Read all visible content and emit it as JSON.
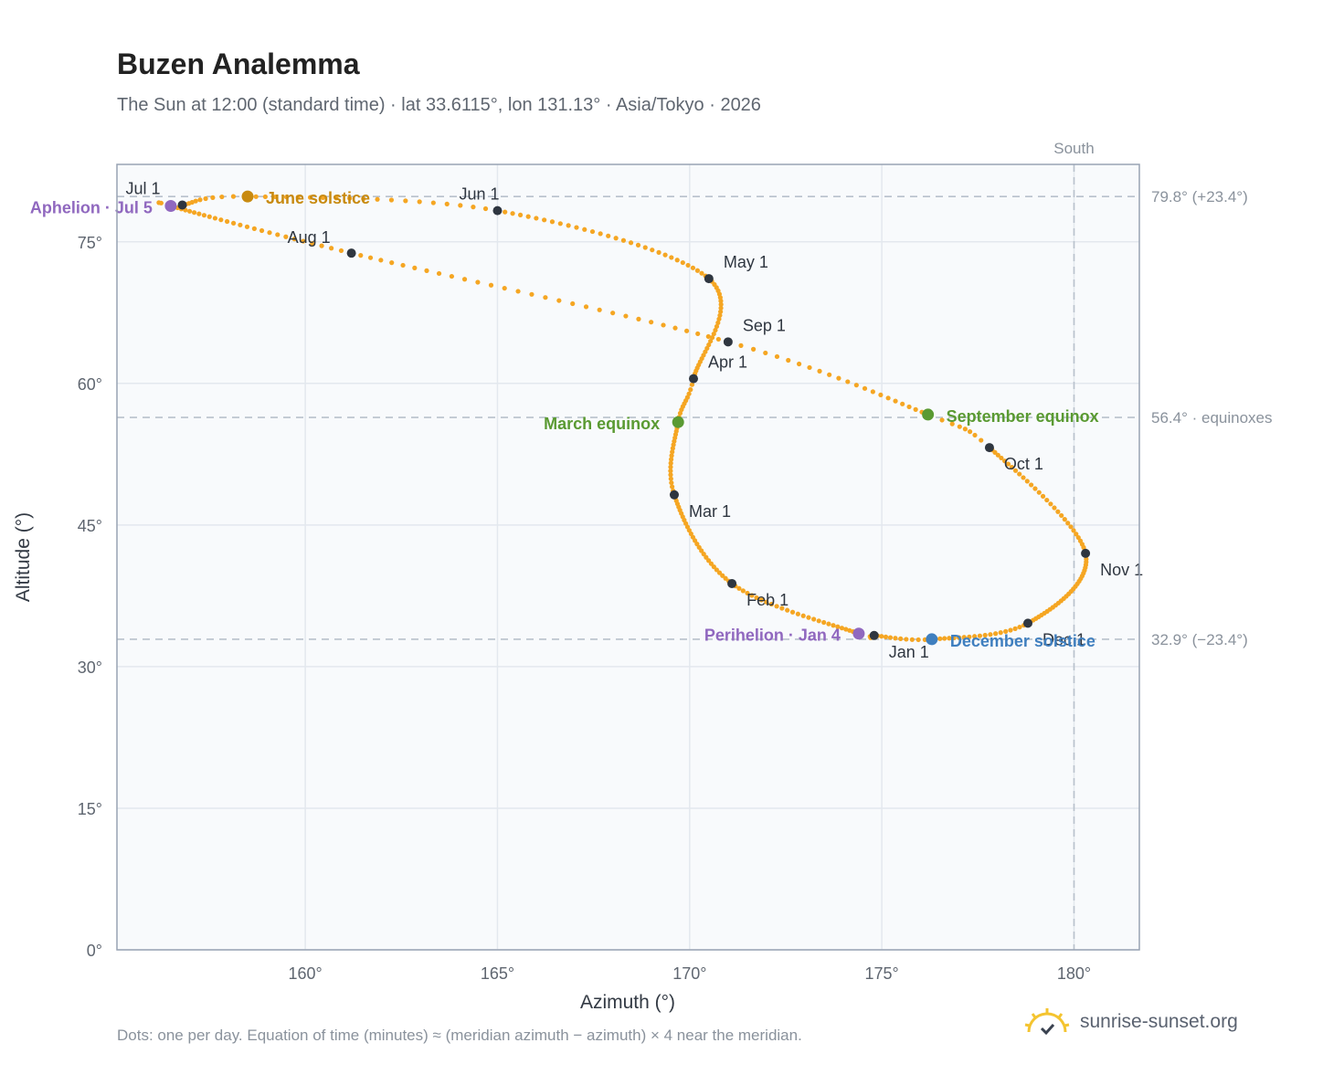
{
  "title": "Buzen Analemma",
  "subtitle": "The Sun at 12:00 (standard time) · lat 33.6115°, lon 131.13° · Asia/Tokyo · 2026",
  "footnote": "Dots: one per day. Equation of time (minutes) ≈ (meridian azimuth − azimuth) × 4 near the meridian.",
  "brand": {
    "name": "sunrise-sunset.org",
    "icon": "sun-logo-icon"
  },
  "colors": {
    "curve": "#f5a623",
    "month_marker": "#2f3640",
    "june_solstice": "#c88a10",
    "december_solstice": "#3f7fbf",
    "equinox": "#5a9a32",
    "apsis": "#9068bf",
    "plot_background": "#f8fafc",
    "grid": "#e3e8ee",
    "reference_line": "#b8c1cc"
  },
  "chart_data": {
    "type": "scatter",
    "title": "Buzen Analemma",
    "xlabel": "Azimuth (°)",
    "ylabel": "Altitude (°)",
    "xlim": [
      155.1,
      181.7
    ],
    "ylim": [
      0,
      83.2
    ],
    "x_ticks": [
      160,
      165,
      170,
      175,
      180
    ],
    "x_tick_labels": [
      "160°",
      "165°",
      "170°",
      "175°",
      "180°"
    ],
    "y_ticks": [
      0,
      15,
      30,
      45,
      60,
      75
    ],
    "y_tick_labels": [
      "0°",
      "15°",
      "30°",
      "45°",
      "60°",
      "75°"
    ],
    "grid": true,
    "month_points": [
      {
        "label": "Jan 1",
        "az": 174.8,
        "alt": 33.3
      },
      {
        "label": "Feb 1",
        "az": 171.1,
        "alt": 38.8
      },
      {
        "label": "Mar 1",
        "az": 169.6,
        "alt": 48.2
      },
      {
        "label": "Apr 1",
        "az": 170.1,
        "alt": 60.5
      },
      {
        "label": "May 1",
        "az": 170.5,
        "alt": 71.1
      },
      {
        "label": "Jun 1",
        "az": 165.0,
        "alt": 78.3
      },
      {
        "label": "Jul 1",
        "az": 156.8,
        "alt": 78.9
      },
      {
        "label": "Aug 1",
        "az": 161.2,
        "alt": 73.8
      },
      {
        "label": "Sep 1",
        "az": 171.0,
        "alt": 64.4
      },
      {
        "label": "Oct 1",
        "az": 177.8,
        "alt": 53.2
      },
      {
        "label": "Nov 1",
        "az": 180.3,
        "alt": 42.0
      },
      {
        "label": "Dec 1",
        "az": 178.8,
        "alt": 34.6
      }
    ],
    "special_points": [
      {
        "label": "June solstice",
        "az": 158.5,
        "alt": 79.8,
        "color": "#c88a10"
      },
      {
        "label": "December solstice",
        "az": 176.3,
        "alt": 32.9,
        "color": "#3f7fbf"
      },
      {
        "label": "March equinox",
        "az": 169.7,
        "alt": 55.9,
        "color": "#5a9a32"
      },
      {
        "label": "September equinox",
        "az": 176.2,
        "alt": 56.7,
        "color": "#5a9a32"
      },
      {
        "label": "Aphelion · Jul 5",
        "az": 156.5,
        "alt": 78.8,
        "color": "#9068bf"
      },
      {
        "label": "Perihelion · Jan 4",
        "az": 174.4,
        "alt": 33.5,
        "color": "#9068bf"
      }
    ],
    "reference_lines": [
      {
        "alt": 79.8,
        "label": "79.8° (+23.4°)"
      },
      {
        "alt": 56.4,
        "label": "56.4° · equinoxes"
      },
      {
        "alt": 32.9,
        "label": "32.9° (−23.4°)"
      }
    ],
    "meridian": {
      "az": 180,
      "label": "South"
    }
  }
}
